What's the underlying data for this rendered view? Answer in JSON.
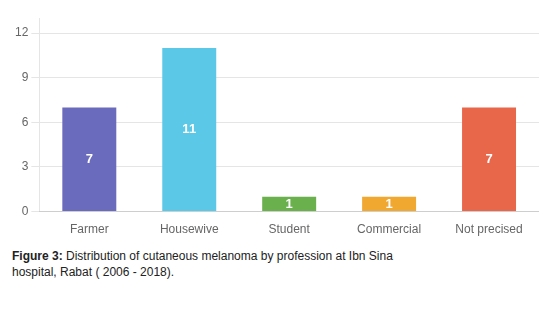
{
  "chart_data": {
    "type": "bar",
    "categories": [
      "Farmer",
      "Housewive",
      "Student",
      "Commercial",
      "Not precised"
    ],
    "values": [
      7,
      11,
      1,
      1,
      7
    ],
    "colors": [
      "#6b6bbd",
      "#5bc8e8",
      "#6ab04c",
      "#f0a830",
      "#e8674a"
    ],
    "ylim": [
      0,
      13
    ],
    "yticks": [
      0,
      3,
      6,
      9,
      12
    ],
    "grid": true,
    "data_labels": true,
    "annotations": [
      "Figure 3:",
      "Distribution of cutaneous melanoma by profession at Ibn Sina\nhospital, Rabat ( 2006 - 2018)."
    ]
  }
}
